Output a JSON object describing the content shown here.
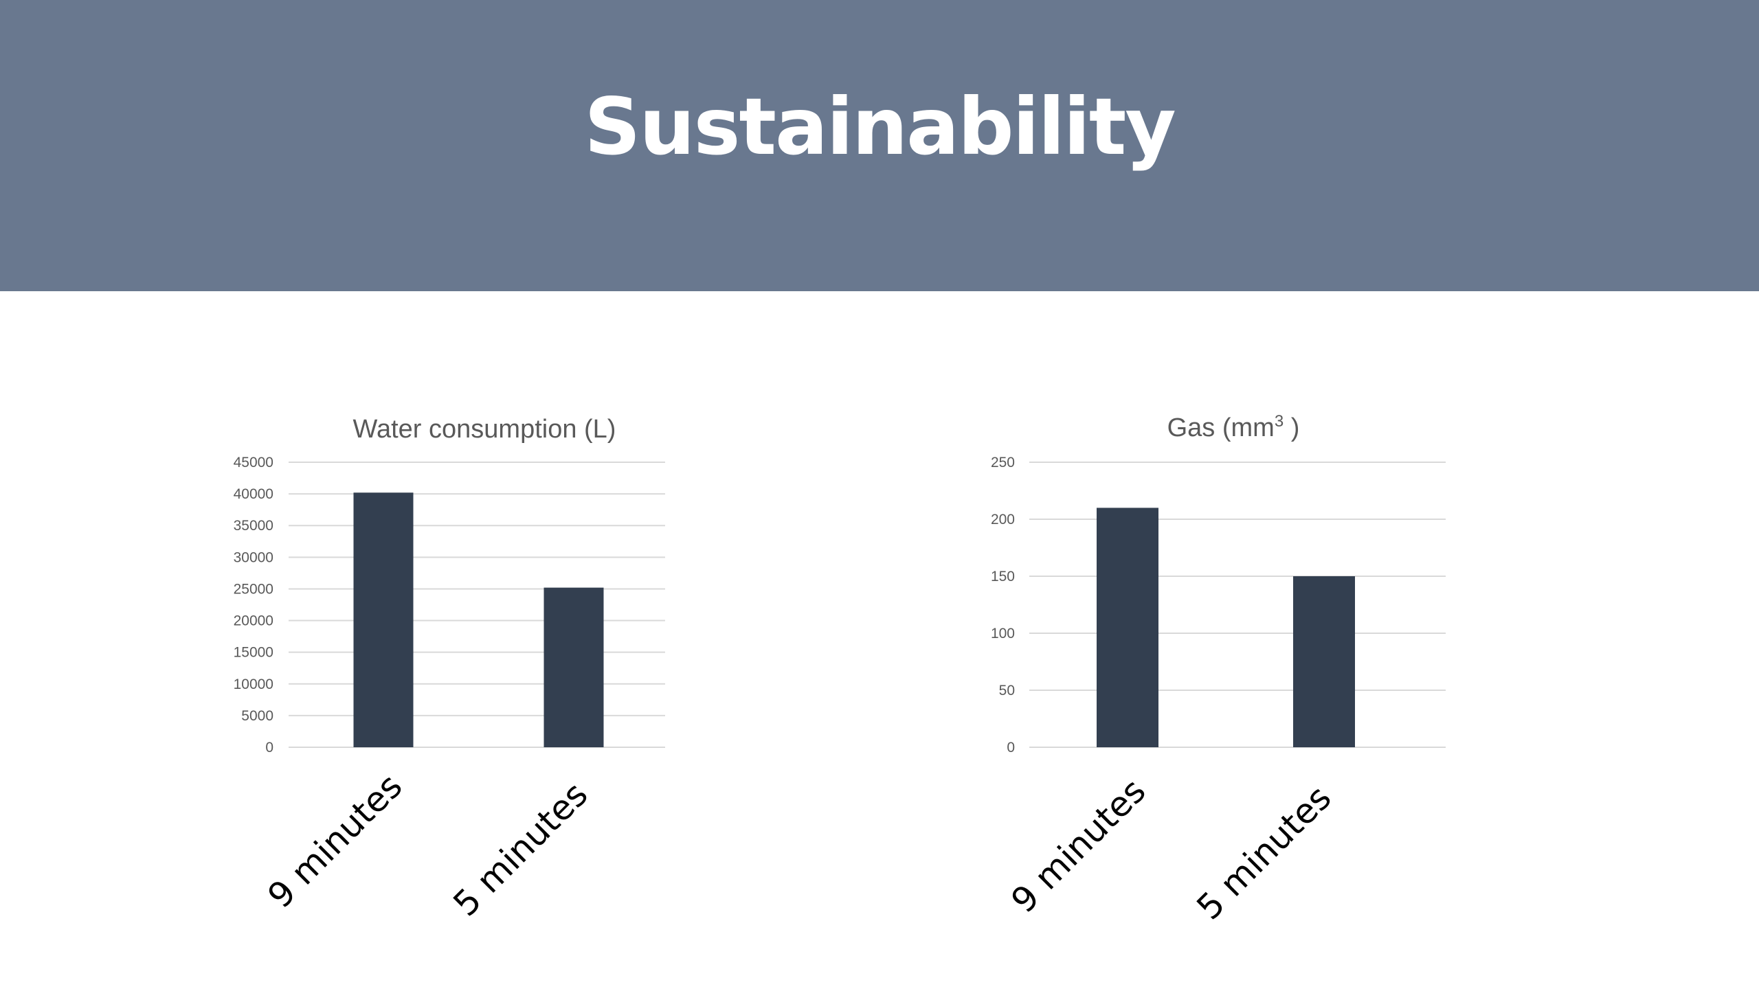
{
  "slide": {
    "title": "Sustainability",
    "header_color": "#69788f",
    "bar_color": "#333f50",
    "grid_color": "#d9d9d9"
  },
  "chart_data": [
    {
      "type": "bar",
      "title": "Water consumption (L)",
      "categories": [
        "9 minutes",
        "5 minutes"
      ],
      "values": [
        40200,
        25200
      ],
      "ylim": [
        0,
        45000
      ],
      "yticks": [
        0,
        5000,
        10000,
        15000,
        20000,
        25000,
        30000,
        35000,
        40000,
        45000
      ],
      "grid": true,
      "legend": "none",
      "xlabel": "",
      "ylabel": ""
    },
    {
      "type": "bar",
      "title": "Gas (mm",
      "title_superscript": "3",
      "title_suffix": " )",
      "categories": [
        "9 minutes",
        "5 minutes"
      ],
      "values": [
        210,
        150
      ],
      "ylim": [
        0,
        250
      ],
      "yticks": [
        0,
        50,
        100,
        150,
        200,
        250
      ],
      "grid": true,
      "legend": "none",
      "xlabel": "",
      "ylabel": ""
    }
  ]
}
